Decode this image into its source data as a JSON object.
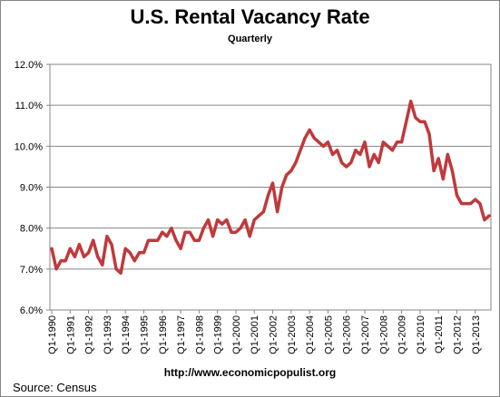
{
  "chart_data": {
    "type": "line",
    "title": "U.S. Rental Vacancy Rate",
    "subtitle": "Quarterly",
    "xlabel": "",
    "ylabel": "",
    "ylim": [
      6.0,
      12.0
    ],
    "yticks": [
      "6.0%",
      "7.0%",
      "8.0%",
      "9.0%",
      "10.0%",
      "11.0%",
      "12.0%"
    ],
    "grid": true,
    "xtick_labels": [
      "Q1-1990",
      "Q1-1991",
      "Q1-1992",
      "Q1-1993",
      "Q1-1994",
      "Q1-1995",
      "Q1-1996",
      "Q1-1997",
      "Q1-1998",
      "Q1-1999",
      "Q1-2000",
      "Q1-2001",
      "Q1-2002",
      "Q1-2003",
      "Q1-2004",
      "Q1-2005",
      "Q1-2006",
      "Q1-2007",
      "Q1-2008",
      "Q1-2009",
      "Q1-2010",
      "Q1-2011",
      "Q1-2012",
      "Q1-2013"
    ],
    "first_period": "Q1-1990",
    "series": [
      {
        "color": "#c0393b",
        "values": [
          7.5,
          7.0,
          7.2,
          7.2,
          7.5,
          7.3,
          7.6,
          7.3,
          7.4,
          7.7,
          7.3,
          7.1,
          7.8,
          7.6,
          7.0,
          6.9,
          7.5,
          7.4,
          7.2,
          7.4,
          7.4,
          7.7,
          7.7,
          7.7,
          7.9,
          7.8,
          8.0,
          7.7,
          7.5,
          7.9,
          7.9,
          7.7,
          7.7,
          8.0,
          8.2,
          7.8,
          8.2,
          8.1,
          8.2,
          7.9,
          7.9,
          8.0,
          8.2,
          7.8,
          8.2,
          8.3,
          8.4,
          8.8,
          9.1,
          8.4,
          9.0,
          9.3,
          9.4,
          9.6,
          9.9,
          10.2,
          10.4,
          10.2,
          10.1,
          10.0,
          10.1,
          9.8,
          9.9,
          9.6,
          9.5,
          9.6,
          9.9,
          9.8,
          10.1,
          9.5,
          9.8,
          9.6,
          10.1,
          10.0,
          9.9,
          10.1,
          10.1,
          10.6,
          11.1,
          10.7,
          10.6,
          10.6,
          10.3,
          9.4,
          9.7,
          9.2,
          9.8,
          9.4,
          8.8,
          8.6,
          8.6,
          8.6,
          8.7,
          8.6,
          8.2,
          8.3
        ]
      }
    ]
  },
  "footer": {
    "url": "http://www.economicpopulist.org",
    "source": "Source:  Census"
  }
}
